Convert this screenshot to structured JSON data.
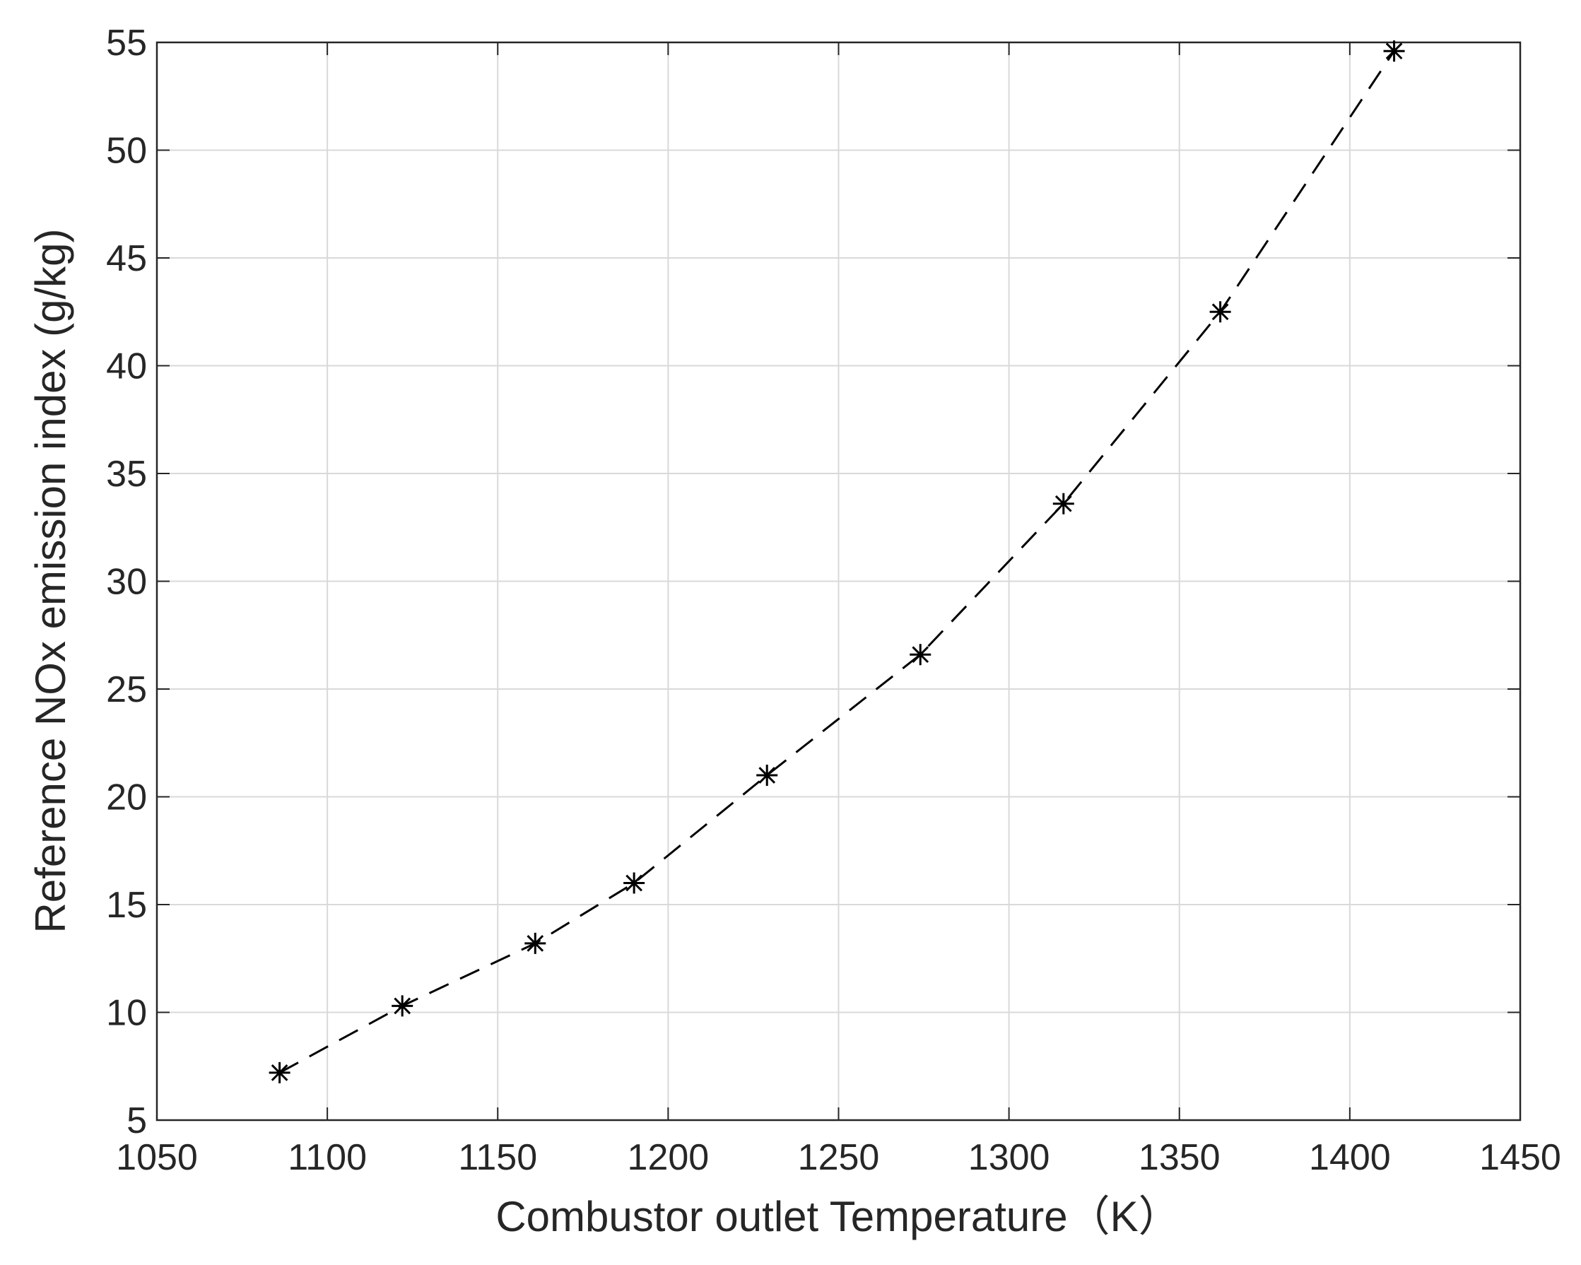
{
  "chart_data": {
    "type": "line",
    "x_label": "Combustor outlet Temperature（K）",
    "y_label": "Reference NOx emission index (g/kg)",
    "x": [
      1086,
      1122,
      1161,
      1190,
      1229,
      1274,
      1316,
      1362,
      1413
    ],
    "values": [
      7.2,
      10.3,
      13.2,
      16.0,
      21.0,
      26.6,
      33.6,
      42.5,
      54.6
    ],
    "color": "#000000",
    "line_style": "dashed",
    "marker": "asterisk",
    "xlim": [
      1050,
      1450
    ],
    "xticks": [
      1050,
      1100,
      1150,
      1200,
      1250,
      1300,
      1350,
      1400,
      1450
    ],
    "ylim": [
      5,
      55
    ],
    "yticks": [
      5,
      10,
      15,
      20,
      25,
      30,
      35,
      40,
      45,
      50,
      55
    ],
    "grid": true
  }
}
